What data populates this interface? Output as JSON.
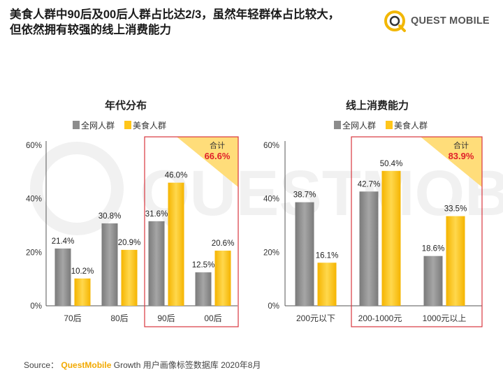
{
  "header": {
    "title_line1": "美食人群中90后及00后人群占比达2/3，虽然年轻群体占比较大，",
    "title_line2": "但依然拥有较强的线上消费能力",
    "logo_text": "QUEST MOBILE"
  },
  "watermark_text": "QUESTMOBILE",
  "colors": {
    "gray": "#8c8c8c",
    "gold": "#ffc61a",
    "red_box": "#d9363e",
    "accent_red": "#e0202a",
    "corner": "#ffdd7a"
  },
  "chart_data": [
    {
      "type": "bar",
      "title": "年代分布",
      "legend": [
        "全网人群",
        "美食人群"
      ],
      "legend_position": "top",
      "categories": [
        "70后",
        "80后",
        "90后",
        "00后"
      ],
      "series": [
        {
          "name": "全网人群",
          "values": [
            21.4,
            30.8,
            31.6,
            12.5
          ]
        },
        {
          "name": "美食人群",
          "values": [
            10.2,
            20.9,
            46.0,
            20.6
          ]
        }
      ],
      "y_ticks": [
        "0%",
        "20%",
        "40%",
        "60%"
      ],
      "ylim": [
        0,
        60
      ],
      "highlight": {
        "categories": [
          "90后",
          "00后"
        ],
        "label": "合计",
        "value": "66.6%"
      }
    },
    {
      "type": "bar",
      "title": "线上消费能力",
      "legend": [
        "全网人群",
        "美食人群"
      ],
      "legend_position": "top",
      "categories": [
        "200元以下",
        "200-1000元",
        "1000元以上"
      ],
      "series": [
        {
          "name": "全网人群",
          "values": [
            38.7,
            42.7,
            18.6
          ]
        },
        {
          "name": "美食人群",
          "values": [
            16.1,
            50.4,
            33.5
          ]
        }
      ],
      "y_ticks": [
        "0%",
        "20%",
        "40%",
        "60%"
      ],
      "ylim": [
        0,
        60
      ],
      "highlight": {
        "categories": [
          "200-1000元",
          "1000元以上"
        ],
        "label": "合计",
        "value": "83.9%"
      }
    }
  ],
  "source": {
    "prefix": "Source：",
    "brand": "QuestMobile",
    "text": " Growth 用户画像标签数据库 2020年8月"
  }
}
